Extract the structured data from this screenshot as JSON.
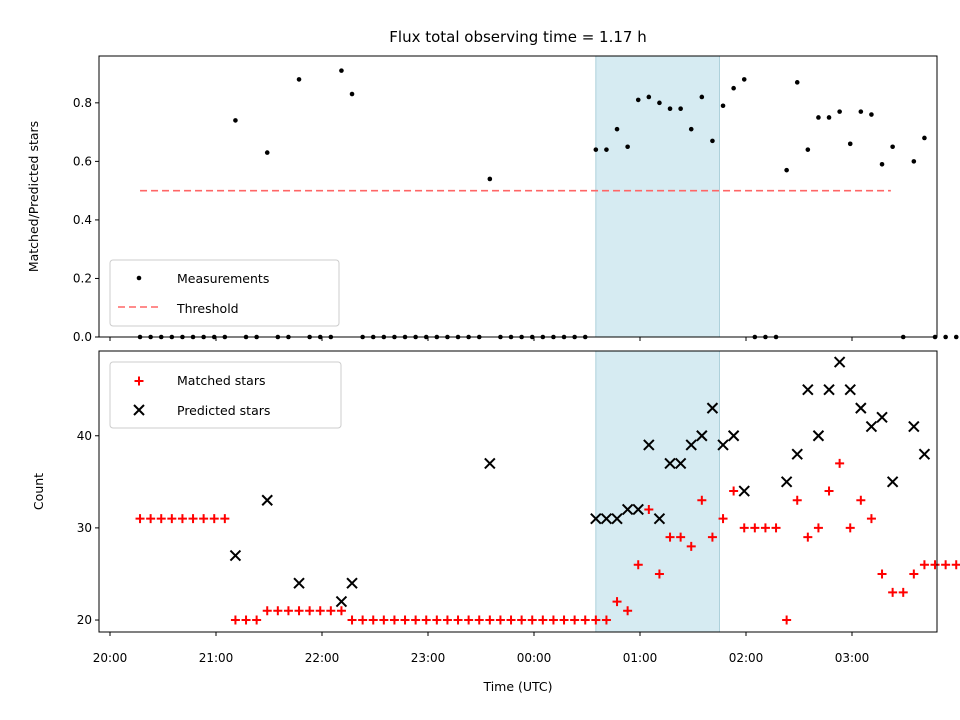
{
  "chart_data": [
    {
      "type": "scatter",
      "title": "Flux total observing time = 1.17 h",
      "ylabel": "Matched/Predicted stars",
      "ylim": [
        0,
        0.96
      ],
      "yticks": [
        0.0,
        0.2,
        0.4,
        0.6,
        0.8
      ],
      "ytick_labels": [
        "0.0",
        "0.2",
        "0.4",
        "0.6",
        "0.8"
      ],
      "highlight_span": {
        "start": "00:35",
        "end": "01:45",
        "color": "#add8e6"
      },
      "threshold": {
        "name": "Threshold",
        "value": 0.5,
        "x_start": "20:17",
        "x_end": "03:22",
        "color": "#ff6666",
        "style": "dashed"
      },
      "legend": [
        "Measurements",
        "Threshold"
      ],
      "legend_position": "lower-left",
      "series": [
        {
          "name": "Measurements",
          "marker": "dot",
          "color": "#000000",
          "points": [
            [
              "20:17",
              0
            ],
            [
              "20:23",
              0
            ],
            [
              "20:29",
              0
            ],
            [
              "20:35",
              0
            ],
            [
              "20:41",
              0
            ],
            [
              "20:47",
              0
            ],
            [
              "20:53",
              0
            ],
            [
              "20:59",
              0
            ],
            [
              "21:05",
              0
            ],
            [
              "21:11",
              0.74
            ],
            [
              "21:17",
              0
            ],
            [
              "21:23",
              0
            ],
            [
              "21:29",
              0.63
            ],
            [
              "21:35",
              0
            ],
            [
              "21:41",
              0
            ],
            [
              "21:47",
              0.88
            ],
            [
              "21:53",
              0
            ],
            [
              "21:59",
              0
            ],
            [
              "22:05",
              0
            ],
            [
              "22:11",
              0.91
            ],
            [
              "22:17",
              0.83
            ],
            [
              "22:23",
              0
            ],
            [
              "22:29",
              0
            ],
            [
              "22:35",
              0
            ],
            [
              "22:41",
              0
            ],
            [
              "22:47",
              0
            ],
            [
              "22:53",
              0
            ],
            [
              "22:59",
              0
            ],
            [
              "23:05",
              0
            ],
            [
              "23:11",
              0
            ],
            [
              "23:17",
              0
            ],
            [
              "23:23",
              0
            ],
            [
              "23:29",
              0
            ],
            [
              "23:35",
              0.54
            ],
            [
              "23:41",
              0
            ],
            [
              "23:47",
              0
            ],
            [
              "23:53",
              0
            ],
            [
              "23:59",
              0
            ],
            [
              "00:05",
              0
            ],
            [
              "00:11",
              0
            ],
            [
              "00:17",
              0
            ],
            [
              "00:23",
              0
            ],
            [
              "00:29",
              0
            ],
            [
              "00:35",
              0.64
            ],
            [
              "00:41",
              0.64
            ],
            [
              "00:47",
              0.71
            ],
            [
              "00:53",
              0.65
            ],
            [
              "00:59",
              0.81
            ],
            [
              "01:05",
              0.82
            ],
            [
              "01:11",
              0.8
            ],
            [
              "01:17",
              0.78
            ],
            [
              "01:23",
              0.78
            ],
            [
              "01:29",
              0.71
            ],
            [
              "01:35",
              0.82
            ],
            [
              "01:41",
              0.67
            ],
            [
              "01:47",
              0.79
            ],
            [
              "01:53",
              0.85
            ],
            [
              "01:59",
              0.88
            ],
            [
              "02:05",
              0
            ],
            [
              "02:11",
              0
            ],
            [
              "02:17",
              0
            ],
            [
              "02:23",
              0.57
            ],
            [
              "02:29",
              0.87
            ],
            [
              "02:35",
              0.64
            ],
            [
              "02:41",
              0.75
            ],
            [
              "02:47",
              0.75
            ],
            [
              "02:53",
              0.77
            ],
            [
              "02:59",
              0.66
            ],
            [
              "03:05",
              0.77
            ],
            [
              "03:11",
              0.76
            ],
            [
              "03:17",
              0.59
            ],
            [
              "03:23",
              0.65
            ],
            [
              "03:29",
              0
            ],
            [
              "03:35",
              0.6
            ],
            [
              "03:41",
              0.68
            ],
            [
              "03:47",
              0
            ],
            [
              "03:53",
              0
            ],
            [
              "03:59",
              0
            ]
          ]
        }
      ]
    },
    {
      "type": "scatter",
      "xlabel": "Time (UTC)",
      "ylabel": "Count",
      "ylim": [
        18.7,
        49.2
      ],
      "yticks": [
        20,
        30,
        40
      ],
      "ytick_labels": [
        "20",
        "30",
        "40"
      ],
      "xticks": [
        "20:00",
        "21:00",
        "22:00",
        "23:00",
        "00:00",
        "01:00",
        "02:00",
        "03:00"
      ],
      "highlight_span": {
        "start": "00:35",
        "end": "01:45",
        "color": "#add8e6"
      },
      "legend": [
        "Matched stars",
        "Predicted stars"
      ],
      "legend_position": "upper-left",
      "series": [
        {
          "name": "Matched stars",
          "marker": "plus",
          "color": "#ff0000",
          "points": [
            [
              "20:17",
              31
            ],
            [
              "20:23",
              31
            ],
            [
              "20:29",
              31
            ],
            [
              "20:35",
              31
            ],
            [
              "20:41",
              31
            ],
            [
              "20:47",
              31
            ],
            [
              "20:53",
              31
            ],
            [
              "20:59",
              31
            ],
            [
              "21:05",
              31
            ],
            [
              "21:11",
              20
            ],
            [
              "21:17",
              20
            ],
            [
              "21:23",
              20
            ],
            [
              "21:29",
              21
            ],
            [
              "21:35",
              21
            ],
            [
              "21:41",
              21
            ],
            [
              "21:47",
              21
            ],
            [
              "21:53",
              21
            ],
            [
              "21:59",
              21
            ],
            [
              "22:05",
              21
            ],
            [
              "22:11",
              21
            ],
            [
              "22:17",
              20
            ],
            [
              "22:23",
              20
            ],
            [
              "22:29",
              20
            ],
            [
              "22:35",
              20
            ],
            [
              "22:41",
              20
            ],
            [
              "22:47",
              20
            ],
            [
              "22:53",
              20
            ],
            [
              "22:59",
              20
            ],
            [
              "23:05",
              20
            ],
            [
              "23:11",
              20
            ],
            [
              "23:17",
              20
            ],
            [
              "23:23",
              20
            ],
            [
              "23:29",
              20
            ],
            [
              "23:35",
              20
            ],
            [
              "23:41",
              20
            ],
            [
              "23:47",
              20
            ],
            [
              "23:53",
              20
            ],
            [
              "23:59",
              20
            ],
            [
              "00:05",
              20
            ],
            [
              "00:11",
              20
            ],
            [
              "00:17",
              20
            ],
            [
              "00:23",
              20
            ],
            [
              "00:29",
              20
            ],
            [
              "00:35",
              20
            ],
            [
              "00:41",
              20
            ],
            [
              "00:47",
              22
            ],
            [
              "00:53",
              21
            ],
            [
              "00:59",
              26
            ],
            [
              "01:05",
              32
            ],
            [
              "01:11",
              25
            ],
            [
              "01:17",
              29
            ],
            [
              "01:23",
              29
            ],
            [
              "01:29",
              28
            ],
            [
              "01:35",
              33
            ],
            [
              "01:41",
              29
            ],
            [
              "01:47",
              31
            ],
            [
              "01:53",
              34
            ],
            [
              "01:59",
              30
            ],
            [
              "02:05",
              30
            ],
            [
              "02:11",
              30
            ],
            [
              "02:17",
              30
            ],
            [
              "02:23",
              20
            ],
            [
              "02:29",
              33
            ],
            [
              "02:35",
              29
            ],
            [
              "02:41",
              30
            ],
            [
              "02:47",
              34
            ],
            [
              "02:53",
              37
            ],
            [
              "02:59",
              30
            ],
            [
              "03:05",
              33
            ],
            [
              "03:11",
              31
            ],
            [
              "03:17",
              25
            ],
            [
              "03:23",
              23
            ],
            [
              "03:29",
              23
            ],
            [
              "03:35",
              25
            ],
            [
              "03:41",
              26
            ],
            [
              "03:47",
              26
            ],
            [
              "03:53",
              26
            ],
            [
              "03:59",
              26
            ]
          ]
        },
        {
          "name": "Predicted stars",
          "marker": "x",
          "color": "#000000",
          "points": [
            [
              "21:11",
              27
            ],
            [
              "21:29",
              33
            ],
            [
              "21:47",
              24
            ],
            [
              "22:11",
              22
            ],
            [
              "22:17",
              24
            ],
            [
              "23:35",
              37
            ],
            [
              "00:35",
              31
            ],
            [
              "00:41",
              31
            ],
            [
              "00:47",
              31
            ],
            [
              "00:53",
              32
            ],
            [
              "00:59",
              32
            ],
            [
              "01:05",
              39
            ],
            [
              "01:11",
              31
            ],
            [
              "01:17",
              37
            ],
            [
              "01:23",
              37
            ],
            [
              "01:29",
              39
            ],
            [
              "01:35",
              40
            ],
            [
              "01:41",
              43
            ],
            [
              "01:47",
              39
            ],
            [
              "01:53",
              40
            ],
            [
              "01:59",
              34
            ],
            [
              "02:23",
              35
            ],
            [
              "02:29",
              38
            ],
            [
              "02:35",
              45
            ],
            [
              "02:41",
              40
            ],
            [
              "02:47",
              45
            ],
            [
              "02:53",
              48
            ],
            [
              "02:59",
              45
            ],
            [
              "03:05",
              43
            ],
            [
              "03:11",
              41
            ],
            [
              "03:17",
              42
            ],
            [
              "03:23",
              35
            ],
            [
              "03:35",
              41
            ],
            [
              "03:41",
              38
            ]
          ]
        }
      ]
    }
  ]
}
